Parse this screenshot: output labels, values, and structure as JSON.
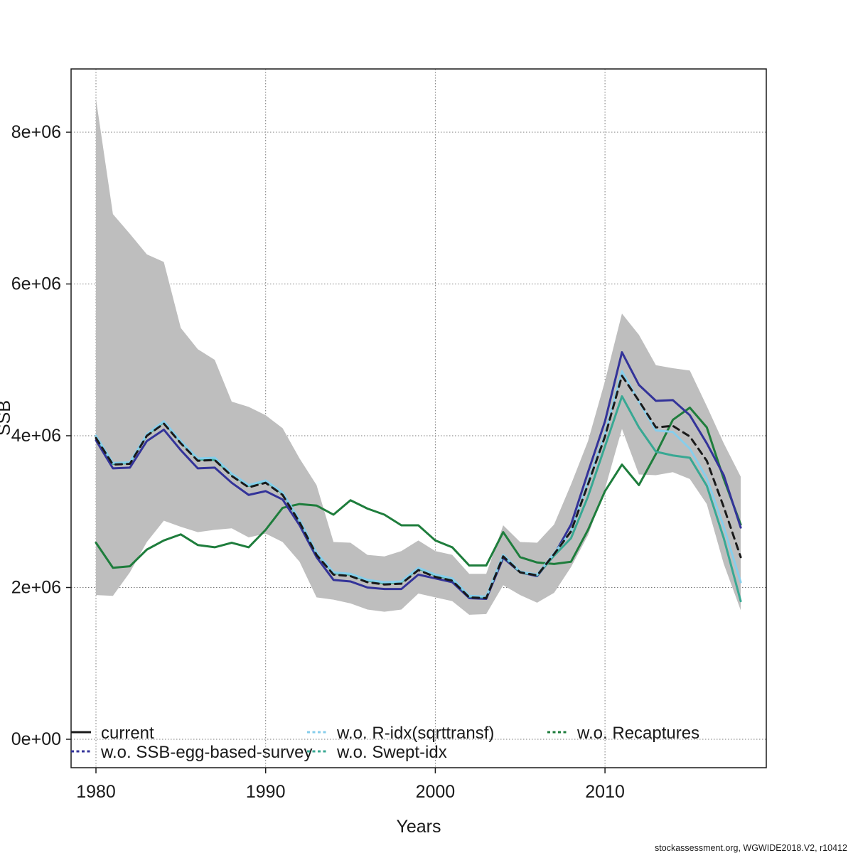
{
  "chart_data": {
    "type": "line",
    "title": "",
    "xlabel": "Years",
    "ylabel": "SSB",
    "x": [
      1980,
      1981,
      1982,
      1983,
      1984,
      1985,
      1986,
      1987,
      1988,
      1989,
      1990,
      1991,
      1992,
      1993,
      1994,
      1995,
      1996,
      1997,
      1998,
      1999,
      2000,
      2001,
      2002,
      2003,
      2004,
      2005,
      2006,
      2007,
      2008,
      2009,
      2010,
      2011,
      2012,
      2013,
      2014,
      2015,
      2016,
      2017,
      2018
    ],
    "unit_note": "series values are SSB in millions (value x 1e6)",
    "series": [
      {
        "name": "current",
        "color": "#1a1a1a",
        "values_e6": [
          3.97,
          3.62,
          3.63,
          4.0,
          4.16,
          3.9,
          3.67,
          3.68,
          3.47,
          3.32,
          3.38,
          3.22,
          2.86,
          2.43,
          2.17,
          2.15,
          2.07,
          2.04,
          2.05,
          2.23,
          2.14,
          2.09,
          1.87,
          1.86,
          2.41,
          2.2,
          2.16,
          2.44,
          2.74,
          3.36,
          3.99,
          4.79,
          4.46,
          4.11,
          4.13,
          3.99,
          3.67,
          3.06,
          2.4
        ]
      },
      {
        "name": "w.o. SSB-egg-based-survey",
        "color": "#333399",
        "values_e6": [
          3.94,
          3.57,
          3.58,
          3.93,
          4.08,
          3.81,
          3.57,
          3.58,
          3.38,
          3.22,
          3.27,
          3.16,
          2.82,
          2.4,
          2.1,
          2.08,
          2.0,
          1.98,
          1.98,
          2.17,
          2.12,
          2.07,
          1.86,
          1.85,
          2.39,
          2.2,
          2.15,
          2.43,
          2.83,
          3.52,
          4.19,
          5.1,
          4.67,
          4.46,
          4.47,
          4.27,
          3.9,
          3.48,
          2.79
        ]
      },
      {
        "name": "w.o. R-idx(sqrttransf)",
        "color": "#87CEEB",
        "values_e6": [
          4.0,
          3.64,
          3.65,
          4.02,
          4.19,
          3.93,
          3.7,
          3.71,
          3.5,
          3.35,
          3.41,
          3.25,
          2.89,
          2.46,
          2.2,
          2.18,
          2.1,
          2.07,
          2.08,
          2.26,
          2.17,
          2.12,
          1.89,
          1.88,
          2.43,
          2.21,
          2.17,
          2.45,
          2.74,
          3.39,
          4.02,
          4.85,
          4.45,
          4.07,
          4.05,
          3.83,
          3.44,
          2.8,
          2.07
        ]
      },
      {
        "name": "w.o. Swept-idx",
        "color": "#38A893",
        "values_e6": [
          3.99,
          3.63,
          3.64,
          4.01,
          4.18,
          3.92,
          3.69,
          3.68,
          3.49,
          3.34,
          3.4,
          3.24,
          2.88,
          2.45,
          2.19,
          2.17,
          2.09,
          2.06,
          2.07,
          2.25,
          2.16,
          2.11,
          1.88,
          1.87,
          2.42,
          2.2,
          2.16,
          2.42,
          2.65,
          3.2,
          3.86,
          4.52,
          4.11,
          3.79,
          3.74,
          3.71,
          3.34,
          2.65,
          1.82
        ]
      },
      {
        "name": "w.o. Recaptures",
        "color": "#1E7D3C",
        "values_e6": [
          2.59,
          2.26,
          2.28,
          2.5,
          2.62,
          2.7,
          2.56,
          2.53,
          2.59,
          2.53,
          2.76,
          3.05,
          3.1,
          3.08,
          2.96,
          3.15,
          3.04,
          2.96,
          2.82,
          2.82,
          2.62,
          2.53,
          2.29,
          2.29,
          2.73,
          2.4,
          2.33,
          2.31,
          2.34,
          2.76,
          3.27,
          3.62,
          3.35,
          3.76,
          4.21,
          4.37,
          4.11,
          3.43,
          2.83
        ]
      }
    ],
    "band": {
      "belongs_to": "current",
      "color": "#BEBEBE",
      "upper_e6": [
        8.44,
        6.92,
        6.66,
        6.39,
        6.29,
        5.42,
        5.14,
        5.0,
        4.45,
        4.38,
        4.27,
        4.1,
        3.7,
        3.35,
        2.6,
        2.59,
        2.43,
        2.41,
        2.48,
        2.62,
        2.48,
        2.43,
        2.18,
        2.18,
        2.82,
        2.6,
        2.59,
        2.83,
        3.36,
        3.93,
        4.72,
        5.61,
        5.33,
        4.93,
        4.89,
        4.86,
        4.39,
        3.9,
        3.46
      ],
      "lower_e6": [
        1.9,
        1.89,
        2.2,
        2.6,
        2.88,
        2.8,
        2.73,
        2.76,
        2.78,
        2.66,
        2.71,
        2.6,
        2.34,
        1.87,
        1.84,
        1.79,
        1.71,
        1.68,
        1.71,
        1.92,
        1.87,
        1.82,
        1.64,
        1.65,
        2.03,
        1.9,
        1.8,
        1.93,
        2.27,
        2.69,
        3.3,
        4.09,
        3.49,
        3.48,
        3.52,
        3.43,
        3.1,
        2.31,
        1.7
      ]
    },
    "x_ticks": [
      1980,
      1990,
      2000,
      2010
    ],
    "y_ticks": [
      {
        "label": "0e+00",
        "value_e6": 0
      },
      {
        "label": "2e+06",
        "value_e6": 2
      },
      {
        "label": "4e+06",
        "value_e6": 4
      },
      {
        "label": "6e+06",
        "value_e6": 6
      },
      {
        "label": "8e+06",
        "value_e6": 8
      }
    ],
    "xlim": [
      1978.5,
      2019.5
    ],
    "ylim_e6": [
      -0.38,
      8.83
    ],
    "grid": "dotted",
    "legend": {
      "position": "bottom-inside",
      "entries": [
        "current",
        "w.o. SSB-egg-based-survey",
        "w.o. R-idx(sqrttransf)",
        "w.o. Swept-idx",
        "w.o. Recaptures"
      ]
    }
  },
  "footer": {
    "credit": "stockassessment.org, WGWIDE2018.V2, r10412"
  }
}
